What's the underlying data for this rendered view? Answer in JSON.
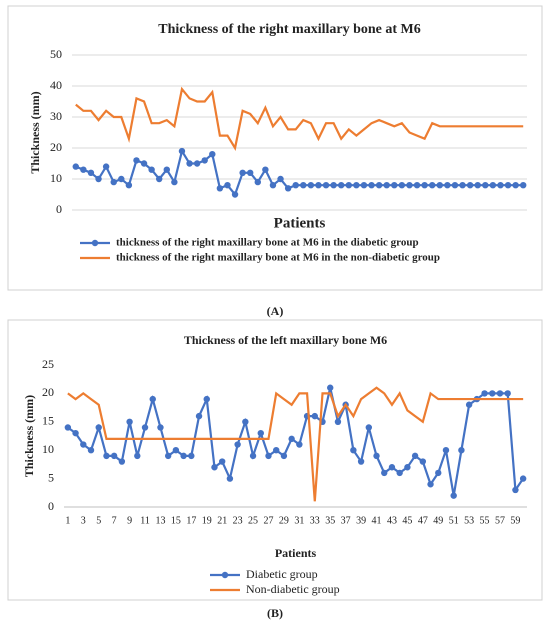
{
  "chart_data": [
    {
      "type": "line",
      "title": "Thickness of the right maxillary bone at M6",
      "x_label": "Patients",
      "y_label": "Thickness (mm)",
      "caption": "(A)",
      "ylim": [
        0,
        50
      ],
      "yticks": [
        0,
        10,
        20,
        30,
        40,
        50
      ],
      "grid": true,
      "series": [
        {
          "name": "thickness of the right maxillary bone at M6 in the diabetic group",
          "color": "#4472c4",
          "values": [
            14,
            13,
            12,
            10,
            14,
            9,
            10,
            8,
            16,
            15,
            13,
            10,
            13,
            9,
            19,
            15,
            15,
            16,
            18,
            7,
            8,
            5,
            12,
            12,
            9,
            13,
            8,
            10,
            7,
            8,
            8,
            8,
            8,
            8,
            8,
            8,
            8,
            8,
            8,
            8,
            8,
            8,
            8,
            8,
            8,
            8,
            8,
            8,
            8,
            8,
            8,
            8,
            8,
            8,
            8,
            8,
            8,
            8,
            8,
            8
          ]
        },
        {
          "name": "thickness of the right maxillary bone at M6 in the  non-diabetic group",
          "color": "#ed7d31",
          "values": [
            34,
            32,
            32,
            29,
            32,
            30,
            30,
            23,
            36,
            35,
            28,
            28,
            29,
            27,
            39,
            36,
            35,
            35,
            38,
            24,
            24,
            20,
            32,
            31,
            28,
            33,
            27,
            30,
            26,
            26,
            29,
            28,
            23,
            28,
            28,
            23,
            26,
            24,
            26,
            28,
            29,
            28,
            27,
            28,
            25,
            24,
            23,
            28,
            27,
            27,
            27,
            27,
            27,
            27,
            27,
            27,
            27,
            27,
            27,
            27
          ]
        }
      ]
    },
    {
      "type": "line",
      "title": "Thickness of the left maxillary bone M6",
      "x_label": "Patients",
      "y_label": "Thickness (mm)",
      "caption": "(B)",
      "ylim": [
        0,
        25
      ],
      "yticks": [
        0,
        5,
        10,
        15,
        20,
        25
      ],
      "grid": false,
      "categories": [
        1,
        null,
        3,
        null,
        5,
        null,
        7,
        null,
        9,
        null,
        11,
        null,
        13,
        null,
        15,
        null,
        17,
        null,
        19,
        null,
        21,
        null,
        23,
        null,
        25,
        null,
        27,
        null,
        29,
        null,
        31,
        null,
        33,
        null,
        35,
        null,
        37,
        null,
        39,
        null,
        41,
        null,
        43,
        null,
        45,
        null,
        47,
        null,
        49,
        null,
        51,
        null,
        53,
        null,
        55,
        null,
        57,
        null,
        59,
        null
      ],
      "series": [
        {
          "name": "Diabetic group",
          "color": "#4472c4",
          "values": [
            14,
            13,
            11,
            10,
            14,
            9,
            9,
            8,
            15,
            9,
            14,
            19,
            14,
            9,
            10,
            9,
            9,
            16,
            19,
            7,
            8,
            5,
            11,
            15,
            9,
            13,
            9,
            10,
            9,
            12,
            11,
            16,
            16,
            15,
            21,
            15,
            18,
            10,
            8,
            14,
            9,
            6,
            7,
            6,
            7,
            9,
            8,
            4,
            6,
            10,
            2,
            10,
            18,
            19,
            20,
            20,
            20,
            20,
            3,
            5
          ]
        },
        {
          "name": "Non-diabetic group",
          "color": "#ed7d31",
          "values": [
            20,
            19,
            20,
            19,
            18,
            12,
            12,
            12,
            12,
            12,
            12,
            12,
            12,
            12,
            12,
            12,
            12,
            12,
            12,
            12,
            12,
            12,
            12,
            12,
            12,
            12,
            12,
            20,
            19,
            18,
            20,
            20,
            1,
            20,
            20,
            16,
            18,
            16,
            19,
            20,
            21,
            20,
            18,
            20,
            17,
            16,
            15,
            20,
            19,
            19,
            19,
            19,
            19,
            19,
            19,
            19,
            19,
            19,
            19,
            19
          ]
        }
      ]
    }
  ]
}
